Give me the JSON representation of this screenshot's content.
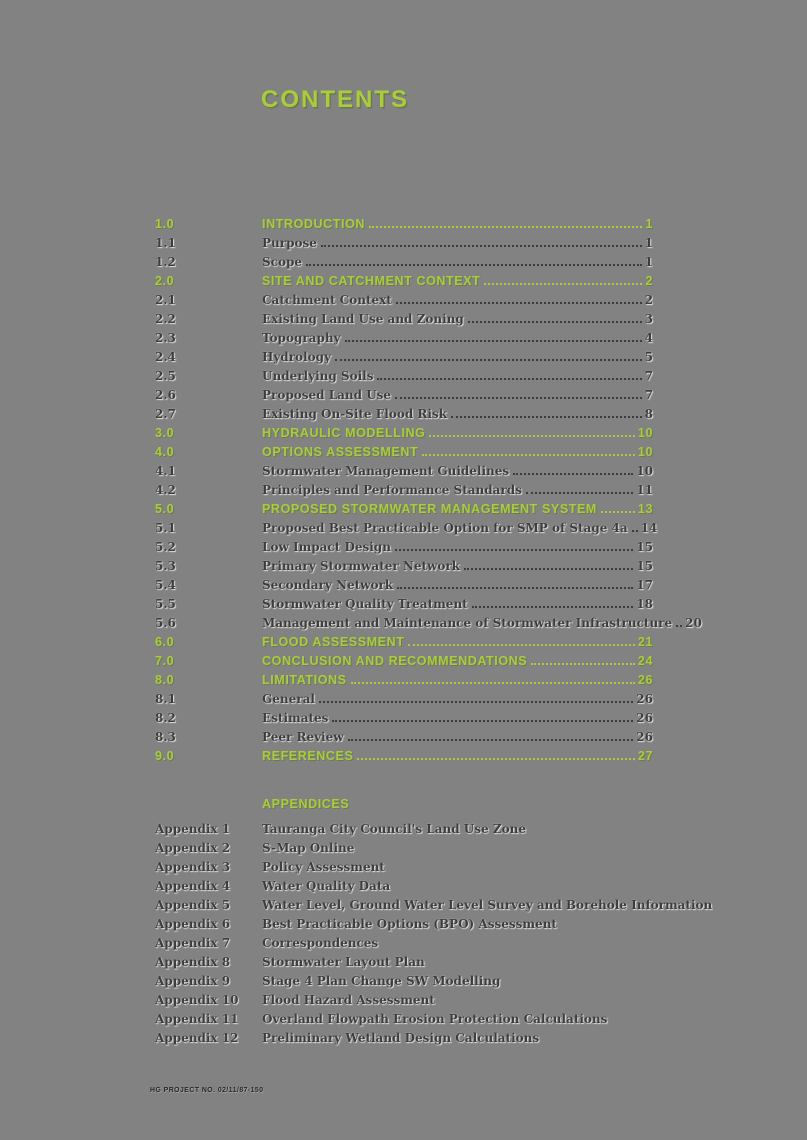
{
  "page": {
    "title": "CONTENTS",
    "footer": "HG PROJECT NO. 02/11/87-150"
  },
  "colors": {
    "accent_green": "#a9cc3f",
    "background_gray": "#828282",
    "text_dark": "#3d3d3d"
  },
  "toc": {
    "entries": [
      {
        "num": "1.0",
        "title": "INTRODUCTION",
        "page": "1",
        "level": "main"
      },
      {
        "num": "1.1",
        "title": "Purpose",
        "page": "1",
        "level": "sub"
      },
      {
        "num": "1.2",
        "title": "Scope",
        "page": "1",
        "level": "sub"
      },
      {
        "num": "2.0",
        "title": "SITE AND CATCHMENT CONTEXT",
        "page": "2",
        "level": "main"
      },
      {
        "num": "2.1",
        "title": "Catchment Context",
        "page": "2",
        "level": "sub"
      },
      {
        "num": "2.2",
        "title": "Existing Land Use and Zoning",
        "page": "3",
        "level": "sub"
      },
      {
        "num": "2.3",
        "title": "Topography",
        "page": "4",
        "level": "sub"
      },
      {
        "num": "2.4",
        "title": "Hydrology",
        "page": "5",
        "level": "sub"
      },
      {
        "num": "2.5",
        "title": "Underlying Soils",
        "page": "7",
        "level": "sub"
      },
      {
        "num": "2.6",
        "title": "Proposed Land Use",
        "page": "7",
        "level": "sub"
      },
      {
        "num": "2.7",
        "title": "Existing On-Site Flood Risk",
        "page": "8",
        "level": "sub"
      },
      {
        "num": "3.0",
        "title": "HYDRAULIC MODELLING",
        "page": "10",
        "level": "main"
      },
      {
        "num": "4.0",
        "title": "OPTIONS ASSESSMENT",
        "page": "10",
        "level": "main"
      },
      {
        "num": "4.1",
        "title": "Stormwater Management Guidelines",
        "page": "10",
        "level": "sub"
      },
      {
        "num": "4.2",
        "title": "Principles and Performance Standards",
        "page": "11",
        "level": "sub"
      },
      {
        "num": "5.0",
        "title": "PROPOSED STORMWATER MANAGEMENT SYSTEM",
        "page": "13",
        "level": "main"
      },
      {
        "num": "5.1",
        "title": "Proposed Best Practicable Option for SMP of Stage 4a",
        "page": "14",
        "level": "sub"
      },
      {
        "num": "5.2",
        "title": "Low Impact Design",
        "page": "15",
        "level": "sub"
      },
      {
        "num": "5.3",
        "title": "Primary Stormwater Network",
        "page": "15",
        "level": "sub"
      },
      {
        "num": "5.4",
        "title": "Secondary Network",
        "page": "17",
        "level": "sub"
      },
      {
        "num": "5.5",
        "title": "Stormwater Quality Treatment",
        "page": "18",
        "level": "sub"
      },
      {
        "num": "5.6",
        "title": "Management and Maintenance of Stormwater Infrastructure",
        "page": "20",
        "level": "sub"
      },
      {
        "num": "6.0",
        "title": "FLOOD ASSESSMENT",
        "page": "21",
        "level": "main"
      },
      {
        "num": "7.0",
        "title": "CONCLUSION AND RECOMMENDATIONS",
        "page": "24",
        "level": "main"
      },
      {
        "num": "8.0",
        "title": "LIMITATIONS",
        "page": "26",
        "level": "main"
      },
      {
        "num": "8.1",
        "title": "General",
        "page": "26",
        "level": "sub"
      },
      {
        "num": "8.2",
        "title": "Estimates",
        "page": "26",
        "level": "sub"
      },
      {
        "num": "8.3",
        "title": "Peer Review",
        "page": "26",
        "level": "sub"
      },
      {
        "num": "9.0",
        "title": "REFERENCES",
        "page": "27",
        "level": "main"
      }
    ]
  },
  "appendices": {
    "heading": "APPENDICES",
    "items": [
      {
        "label": "Appendix 1",
        "title": "Tauranga City Council's Land Use Zone"
      },
      {
        "label": "Appendix 2",
        "title": "S-Map Online"
      },
      {
        "label": "Appendix 3",
        "title": "Policy Assessment"
      },
      {
        "label": "Appendix 4",
        "title": "Water Quality Data"
      },
      {
        "label": "Appendix 5",
        "title": "Water Level, Ground Water Level Survey and Borehole Information"
      },
      {
        "label": "Appendix 6",
        "title": "Best Practicable Options (BPO) Assessment"
      },
      {
        "label": "Appendix 7",
        "title": "Correspondences"
      },
      {
        "label": "Appendix 8",
        "title": "Stormwater Layout Plan"
      },
      {
        "label": "Appendix 9",
        "title": "Stage 4 Plan Change SW Modelling"
      },
      {
        "label": "Appendix 10",
        "title": "Flood Hazard Assessment"
      },
      {
        "label": "Appendix 11",
        "title": "Overland Flowpath Erosion Protection Calculations"
      },
      {
        "label": "Appendix 12",
        "title": "Preliminary Wetland Design Calculations"
      }
    ]
  }
}
